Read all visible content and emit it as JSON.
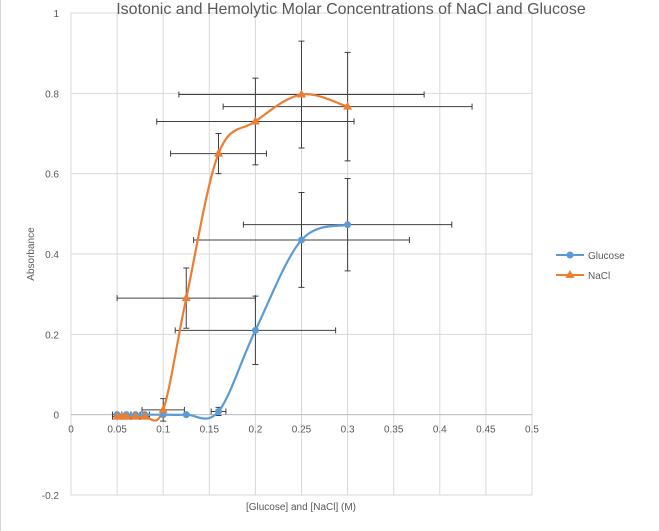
{
  "chart_data": {
    "type": "scatter",
    "title": "Isotonic and Hemolytic Molar Concentrations of NaCl and Glucose",
    "xlabel": "[Glucose] and [NaCl] (M)",
    "ylabel": "Absorbance",
    "xlim": [
      0,
      0.5
    ],
    "ylim": [
      -0.2,
      1
    ],
    "xticks": [
      "0",
      "0.05",
      "0.1",
      "0.15",
      "0.2",
      "0.25",
      "0.3",
      "0.35",
      "0.4",
      "0.45",
      "0.5"
    ],
    "yticks": [
      "-0.2",
      "0",
      "0.2",
      "0.4",
      "0.6",
      "0.8",
      "1"
    ],
    "grid": true,
    "legend": "right",
    "smooth": true,
    "series": [
      {
        "name": "Glucose",
        "color": "#5B9BD5",
        "marker": "circle",
        "x": [
          0.05,
          0.06,
          0.07,
          0.08,
          0.1,
          0.125,
          0.16,
          0.2,
          0.25,
          0.3
        ],
        "y": [
          0,
          0,
          0,
          0,
          0,
          0,
          0.008,
          0.21,
          0.435,
          0.473
        ],
        "yerr": [
          0,
          0,
          0,
          0,
          0,
          0,
          0.01,
          0.085,
          0.118,
          0.115
        ],
        "xerr": [
          0.005,
          0.005,
          0.005,
          0.005,
          0,
          0,
          0.008,
          0.087,
          0.117,
          0.113
        ]
      },
      {
        "name": "NaCl",
        "color": "#ED7D31",
        "marker": "triangle",
        "x": [
          0.05,
          0.055,
          0.06,
          0.07,
          0.08,
          0.1,
          0.125,
          0.16,
          0.2,
          0.25,
          0.3
        ],
        "y": [
          -0.005,
          -0.005,
          -0.005,
          -0.005,
          -0.005,
          0.012,
          0.29,
          0.65,
          0.73,
          0.797,
          0.767
        ],
        "yerr": [
          0,
          0,
          0,
          0,
          0,
          0.028,
          0.075,
          0.05,
          0.108,
          0.133,
          0.135
        ],
        "xerr": [
          0.005,
          0.005,
          0.005,
          0.005,
          0.005,
          0.023,
          0.075,
          0.052,
          0.107,
          0.133,
          0.135
        ]
      }
    ]
  }
}
